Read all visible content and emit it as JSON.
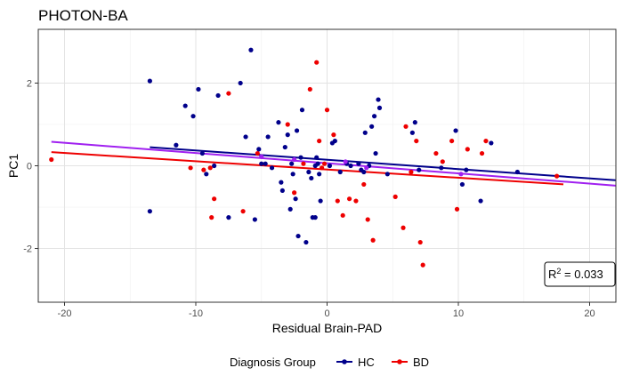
{
  "chart_data": {
    "type": "scatter",
    "title": "PHOTON-BA",
    "xlabel": "Residual Brain-PAD",
    "ylabel": "PC1",
    "xlim": [
      -22,
      22
    ],
    "ylim": [
      -3.3,
      3.3
    ],
    "xticks": [
      -20,
      -10,
      0,
      10,
      20
    ],
    "yticks": [
      -2,
      0,
      2
    ],
    "grid": true,
    "legend": {
      "title": "Diagnosis Group",
      "position": "bottom",
      "entries": [
        {
          "label": "HC",
          "color": "#00008B"
        },
        {
          "label": "BD",
          "color": "#EE0000"
        }
      ]
    },
    "annotation": {
      "label": "R",
      "sup": "2",
      "value": " = 0.033",
      "position": "bottom-right"
    },
    "series": [
      {
        "name": "HC",
        "color": "#00008B",
        "fit": {
          "x": [
            -13.5,
            22
          ],
          "y": [
            0.45,
            -0.35
          ]
        },
        "points": [
          [
            -13.5,
            2.05
          ],
          [
            -13.5,
            -1.1
          ],
          [
            -11.5,
            0.5
          ],
          [
            -10.8,
            1.45
          ],
          [
            -10.2,
            1.2
          ],
          [
            -9.8,
            1.85
          ],
          [
            -9.5,
            0.3
          ],
          [
            -9.2,
            -0.2
          ],
          [
            -8.6,
            0.0
          ],
          [
            -8.3,
            1.7
          ],
          [
            -7.5,
            -1.25
          ],
          [
            -6.6,
            2.0
          ],
          [
            -6.2,
            0.7
          ],
          [
            -5.8,
            2.8
          ],
          [
            -5.5,
            -1.3
          ],
          [
            -5.2,
            0.4
          ],
          [
            -5.0,
            0.05
          ],
          [
            -4.7,
            0.05
          ],
          [
            -4.5,
            0.7
          ],
          [
            -4.2,
            -0.05
          ],
          [
            -3.7,
            1.05
          ],
          [
            -3.5,
            -0.4
          ],
          [
            -3.4,
            -0.6
          ],
          [
            -3.2,
            0.45
          ],
          [
            -3.0,
            0.75
          ],
          [
            -2.8,
            -1.05
          ],
          [
            -2.7,
            0.05
          ],
          [
            -2.6,
            -0.2
          ],
          [
            -2.4,
            -0.8
          ],
          [
            -2.3,
            0.85
          ],
          [
            -2.2,
            -1.7
          ],
          [
            -2.0,
            0.2
          ],
          [
            -1.9,
            1.35
          ],
          [
            -1.6,
            -1.85
          ],
          [
            -1.4,
            -0.15
          ],
          [
            -1.2,
            -0.3
          ],
          [
            -1.1,
            -1.25
          ],
          [
            -0.9,
            -1.25
          ],
          [
            -0.9,
            0.0
          ],
          [
            -0.8,
            0.2
          ],
          [
            -0.7,
            0.05
          ],
          [
            -0.6,
            -0.2
          ],
          [
            -0.5,
            -0.85
          ],
          [
            0.2,
            0.0
          ],
          [
            0.4,
            0.55
          ],
          [
            0.6,
            0.6
          ],
          [
            1.0,
            -0.15
          ],
          [
            1.5,
            0.05
          ],
          [
            1.8,
            0.0
          ],
          [
            2.4,
            0.05
          ],
          [
            2.6,
            -0.1
          ],
          [
            2.8,
            -0.15
          ],
          [
            2.9,
            0.8
          ],
          [
            3.2,
            0.0
          ],
          [
            3.4,
            0.95
          ],
          [
            3.6,
            1.2
          ],
          [
            3.7,
            0.3
          ],
          [
            3.9,
            1.6
          ],
          [
            4.0,
            1.4
          ],
          [
            4.6,
            -0.2
          ],
          [
            6.5,
            0.8
          ],
          [
            6.7,
            1.05
          ],
          [
            7.0,
            -0.1
          ],
          [
            8.7,
            -0.05
          ],
          [
            9.8,
            0.85
          ],
          [
            10.3,
            -0.45
          ],
          [
            10.6,
            -0.1
          ],
          [
            11.7,
            -0.85
          ],
          [
            12.5,
            0.55
          ],
          [
            14.5,
            -0.15
          ]
        ]
      },
      {
        "name": "BD",
        "color": "#EE0000",
        "fit": {
          "x": [
            -21,
            18
          ],
          "y": [
            0.33,
            -0.45
          ]
        },
        "points": [
          [
            -21.0,
            0.15
          ],
          [
            -10.4,
            -0.05
          ],
          [
            -9.4,
            -0.1
          ],
          [
            -8.9,
            -0.05
          ],
          [
            -8.8,
            -1.25
          ],
          [
            -8.6,
            -0.8
          ],
          [
            -7.5,
            1.75
          ],
          [
            -6.4,
            -1.1
          ],
          [
            -5.3,
            0.3
          ],
          [
            -3.0,
            1.0
          ],
          [
            -2.5,
            -0.65
          ],
          [
            -1.8,
            0.05
          ],
          [
            -1.3,
            1.85
          ],
          [
            -0.8,
            2.5
          ],
          [
            -0.6,
            0.6
          ],
          [
            -0.4,
            -0.05
          ],
          [
            -0.2,
            0.05
          ],
          [
            0.0,
            1.35
          ],
          [
            0.5,
            0.75
          ],
          [
            0.8,
            -0.85
          ],
          [
            1.2,
            -1.2
          ],
          [
            1.7,
            -0.8
          ],
          [
            2.2,
            -0.85
          ],
          [
            2.8,
            -0.45
          ],
          [
            3.1,
            -1.3
          ],
          [
            3.5,
            -1.8
          ],
          [
            5.2,
            -0.75
          ],
          [
            5.8,
            -1.5
          ],
          [
            6.0,
            0.95
          ],
          [
            6.4,
            -0.15
          ],
          [
            6.8,
            0.6
          ],
          [
            7.1,
            -1.85
          ],
          [
            7.3,
            -2.4
          ],
          [
            8.3,
            0.3
          ],
          [
            8.8,
            0.1
          ],
          [
            9.5,
            0.6
          ],
          [
            9.9,
            -1.05
          ],
          [
            10.7,
            0.4
          ],
          [
            11.8,
            0.3
          ],
          [
            12.1,
            0.6
          ],
          [
            17.5,
            -0.25
          ]
        ]
      },
      {
        "name": "",
        "color": "#A020F0",
        "fit": {
          "x": [
            -21,
            22
          ],
          "y": [
            0.58,
            -0.48
          ]
        },
        "points": [
          [
            -5.0,
            0.22
          ],
          [
            -2.5,
            0.15
          ],
          [
            1.4,
            0.1
          ],
          [
            3.0,
            -0.05
          ],
          [
            10.2,
            -0.2
          ]
        ]
      }
    ]
  }
}
